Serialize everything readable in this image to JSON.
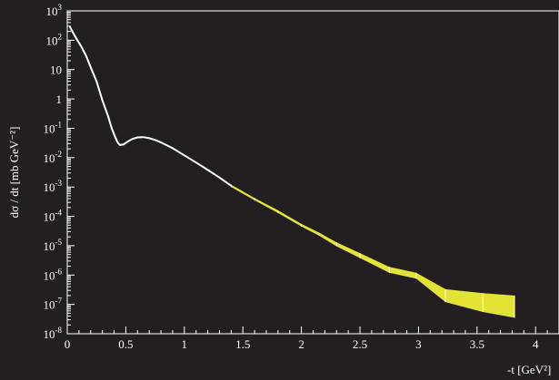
{
  "chart_data": {
    "type": "line",
    "title": "",
    "xlabel": "-t [GeV²]",
    "ylabel": "dσ / dt [mb GeV⁻²]",
    "xlim": [
      0,
      4.2
    ],
    "ylim": [
      1e-08,
      1000
    ],
    "yscale": "log",
    "grid": false,
    "x_ticks": [
      {
        "value": 0,
        "label": "0"
      },
      {
        "value": 0.5,
        "label": "0.5"
      },
      {
        "value": 1,
        "label": "1"
      },
      {
        "value": 1.5,
        "label": "1.5"
      },
      {
        "value": 2,
        "label": "2"
      },
      {
        "value": 2.5,
        "label": "2.5"
      },
      {
        "value": 3,
        "label": "3"
      },
      {
        "value": 3.5,
        "label": "3.5"
      },
      {
        "value": 4,
        "label": "4"
      }
    ],
    "y_ticks": [
      {
        "value": 1000,
        "base": "10",
        "exp": "3"
      },
      {
        "value": 100,
        "base": "10",
        "exp": "2"
      },
      {
        "value": 10,
        "base": "10",
        "exp": ""
      },
      {
        "value": 1,
        "base": "1",
        "exp": ""
      },
      {
        "value": 0.1,
        "base": "10",
        "exp": "-1"
      },
      {
        "value": 0.01,
        "base": "10",
        "exp": "-2"
      },
      {
        "value": 0.001,
        "base": "10",
        "exp": "-3"
      },
      {
        "value": 0.0001,
        "base": "10",
        "exp": "-4"
      },
      {
        "value": 1e-05,
        "base": "10",
        "exp": "-5"
      },
      {
        "value": 1e-06,
        "base": "10",
        "exp": "-6"
      },
      {
        "value": 1e-07,
        "base": "10",
        "exp": "-7"
      },
      {
        "value": 1e-08,
        "base": "10",
        "exp": "-8"
      }
    ],
    "series": [
      {
        "color": "#ffffff",
        "x": [
          0.02,
          0.05,
          0.08,
          0.12,
          0.16,
          0.2,
          0.25,
          0.3,
          0.35,
          0.38,
          0.41,
          0.43,
          0.45,
          0.48,
          0.52,
          0.56,
          0.6,
          0.65,
          0.7,
          0.75,
          0.8,
          0.9,
          1.0,
          1.1,
          1.2,
          1.3,
          1.4
        ],
        "y": [
          300,
          180,
          110,
          60,
          30,
          12,
          4,
          0.9,
          0.25,
          0.1,
          0.05,
          0.033,
          0.027,
          0.028,
          0.036,
          0.044,
          0.049,
          0.05,
          0.046,
          0.04,
          0.033,
          0.021,
          0.012,
          0.0068,
          0.0038,
          0.0021,
          0.0011
        ]
      }
    ],
    "band": {
      "color": "#e3e336",
      "x": [
        1.4,
        1.6,
        1.8,
        2.0,
        2.15,
        2.3,
        2.5,
        2.75,
        2.98,
        3.23,
        3.55,
        3.82
      ],
      "upper": [
        0.0012,
        0.00042,
        0.00016,
        5.5e-05,
        2.8e-05,
        1.3e-05,
        5.6e-06,
        1.9e-06,
        1.2e-06,
        3.3e-07,
        2.4e-07,
        2e-07
      ],
      "lower": [
        0.001,
        0.00035,
        0.00013,
        4.5e-05,
        2.2e-05,
        9.5e-06,
        3.8e-06,
        1.2e-06,
        7.5e-07,
        1.2e-07,
        5.5e-08,
        3.5e-08
      ]
    }
  }
}
